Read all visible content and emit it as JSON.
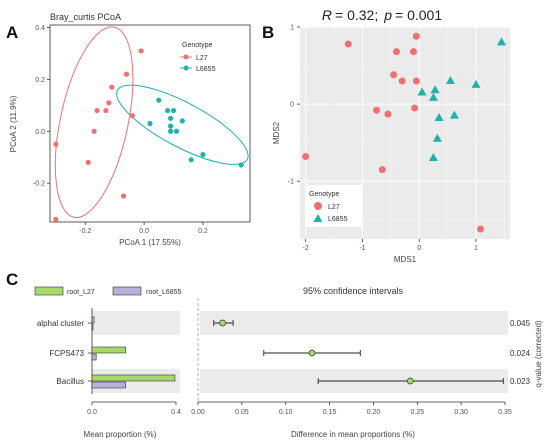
{
  "chart_data": [
    {
      "panel": "A",
      "type": "scatter",
      "title": "Bray_curtis PCoA",
      "xlabel": "PCoA 1 (17.55%)",
      "ylabel": "PCoA 2 (11.9%)",
      "xlim": [
        -0.32,
        0.36
      ],
      "ylim": [
        -0.35,
        0.41
      ],
      "xticks": [
        -0.2,
        0.0,
        0.2
      ],
      "yticks": [
        -0.2,
        0.0,
        0.2,
        0.4
      ],
      "tick_labels_x": [
        "-0.2",
        "0.0",
        "0.2"
      ],
      "tick_labels_y": [
        "-0.2",
        "0.0",
        "0.2",
        "0.4"
      ],
      "grid": false,
      "legend": {
        "title": "Genotype",
        "placement": "top-right",
        "entries": [
          "L27",
          "L6855"
        ]
      },
      "ellipses": [
        {
          "series": "L27",
          "cx": -0.17,
          "cy": 0.035,
          "rx": 0.115,
          "ry": 0.375,
          "angle_deg": 12
        },
        {
          "series": "L6855",
          "cx": 0.13,
          "cy": 0.025,
          "rx": 0.25,
          "ry": 0.085,
          "angle_deg": 28
        }
      ],
      "series": [
        {
          "name": "L27",
          "color": "#f07070",
          "points": [
            [
              -0.01,
              0.31
            ],
            [
              -0.06,
              0.22
            ],
            [
              -0.11,
              0.17
            ],
            [
              -0.12,
              0.11
            ],
            [
              -0.13,
              0.08
            ],
            [
              -0.16,
              0.08
            ],
            [
              -0.17,
              0.0
            ],
            [
              -0.04,
              0.06
            ],
            [
              -0.3,
              -0.05
            ],
            [
              -0.19,
              -0.12
            ],
            [
              -0.07,
              -0.25
            ],
            [
              -0.3,
              -0.34
            ]
          ]
        },
        {
          "name": "L6855",
          "color": "#20b2aa",
          "points": [
            [
              0.05,
              0.12
            ],
            [
              0.08,
              0.08
            ],
            [
              0.1,
              0.08
            ],
            [
              0.09,
              0.05
            ],
            [
              0.13,
              0.04
            ],
            [
              0.02,
              0.03
            ],
            [
              0.09,
              0.02
            ],
            [
              0.09,
              0.0
            ],
            [
              0.11,
              0.0
            ],
            [
              0.2,
              -0.09
            ],
            [
              0.16,
              -0.11
            ],
            [
              0.33,
              -0.13
            ]
          ]
        }
      ]
    },
    {
      "panel": "B",
      "type": "scatter",
      "title": "R= 0.32; p = 0.001",
      "title_parts": {
        "r_label": "R",
        "r_value": "= 0.32;",
        "p_label": "p",
        "p_value": "= 0.001"
      },
      "xlabel": "MDS1",
      "ylabel": "MDS2",
      "xlim": [
        -2.1,
        1.6
      ],
      "ylim": [
        -1.75,
        1.0
      ],
      "xticks": [
        -2,
        -1,
        0,
        1
      ],
      "yticks": [
        -1,
        0,
        1
      ],
      "tick_labels_x": [
        "-2",
        "-1",
        "0",
        "1"
      ],
      "tick_labels_y": [
        "-1",
        "0",
        "1"
      ],
      "grid": true,
      "legend": {
        "title": "Genotype",
        "placement": "bottom-left",
        "entries": [
          "L27",
          "L6855"
        ]
      },
      "series": [
        {
          "name": "L27",
          "color": "#f07070",
          "marker": "circle",
          "points": [
            [
              -1.25,
              0.78
            ],
            [
              -0.05,
              0.88
            ],
            [
              -0.4,
              0.68
            ],
            [
              -0.1,
              0.68
            ],
            [
              -0.45,
              0.38
            ],
            [
              -0.3,
              0.3
            ],
            [
              -0.05,
              0.3
            ],
            [
              -0.75,
              -0.08
            ],
            [
              -0.55,
              -0.13
            ],
            [
              -0.08,
              -0.05
            ],
            [
              -2.0,
              -0.68
            ],
            [
              -0.65,
              -0.85
            ],
            [
              1.08,
              -1.62
            ]
          ]
        },
        {
          "name": "L6855",
          "color": "#20b2aa",
          "marker": "triangle",
          "points": [
            [
              1.45,
              0.8
            ],
            [
              0.05,
              0.15
            ],
            [
              0.55,
              0.3
            ],
            [
              0.28,
              0.18
            ],
            [
              1.0,
              0.25
            ],
            [
              0.25,
              0.08
            ],
            [
              0.35,
              -0.18
            ],
            [
              0.62,
              -0.15
            ],
            [
              0.32,
              -0.45
            ],
            [
              0.25,
              -0.7
            ]
          ]
        }
      ]
    },
    {
      "panel": "C",
      "type": "bar",
      "subtype": "extended_error_bar",
      "legend": {
        "placement": "top-left",
        "entries": [
          "root_L27",
          "root_L6855"
        ]
      },
      "categories": [
        "alphal cluster",
        "FCPS473",
        "Bacillus"
      ],
      "series": [
        {
          "name": "root_L27",
          "color": "#a6d96a",
          "values": [
            0.01,
            0.16,
            0.395
          ]
        },
        {
          "name": "root_L6855",
          "color": "#b8b0d8",
          "values": [
            0.003,
            0.02,
            0.16
          ]
        }
      ],
      "xlabel": "Mean proportion (%)",
      "xlim": [
        0,
        0.4
      ],
      "xticks": [
        0.0,
        0.4
      ],
      "tick_labels_x": [
        "0.0",
        "0.4"
      ],
      "difference": {
        "title": "95% confidence intervals",
        "xlabel": "Difference in mean proportions (%)",
        "xlim": [
          0,
          0.35
        ],
        "xticks": [
          0.0,
          0.05,
          0.1,
          0.15,
          0.2,
          0.25,
          0.3,
          0.35
        ],
        "tick_labels_x": [
          "0.00",
          "0.05",
          "0.10",
          "0.15",
          "0.20",
          "0.25",
          "0.30",
          "0.35"
        ],
        "estimate": [
          0.028,
          0.13,
          0.242
        ],
        "ci_low": [
          0.018,
          0.075,
          0.137
        ],
        "ci_high": [
          0.04,
          0.185,
          0.348
        ],
        "point_color": "#a6d96a"
      },
      "q_values": [
        "0.045",
        "0.024",
        "0.023"
      ],
      "q_label": "q-value (corrected)"
    }
  ],
  "panel_labels": [
    "A",
    "B",
    "C"
  ]
}
